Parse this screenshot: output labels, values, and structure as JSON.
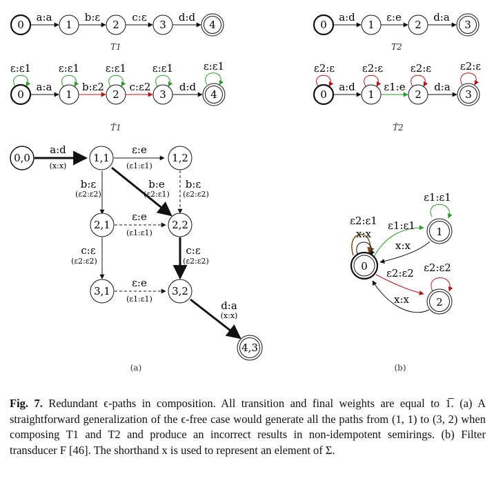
{
  "t1": {
    "states": [
      "0",
      "1",
      "2",
      "3",
      "4"
    ],
    "arcs": [
      "a:a",
      "b:ε",
      "c:ε",
      "d:d"
    ],
    "name": "T1"
  },
  "t2": {
    "states": [
      "0",
      "1",
      "2",
      "3"
    ],
    "arcs": [
      "a:d",
      "ε:e",
      "d:a"
    ],
    "name": "T2"
  },
  "t1_tilde": {
    "loops": [
      "ε:ε1",
      "ε:ε1",
      "ε:ε1",
      "ε:ε1",
      "ε:ε1"
    ],
    "arcs": [
      "a:a",
      "b:ε2",
      "c:ε2",
      "d:d"
    ],
    "name": "T̃1"
  },
  "t2_tilde": {
    "loops": [
      "ε2:ε",
      "ε2:ε",
      "ε2:ε",
      "ε2:ε"
    ],
    "arcs": [
      "a:d",
      "ε1:e",
      "d:a"
    ],
    "name": "T̃2"
  },
  "composition": {
    "states": [
      "0,0",
      "1,1",
      "1,2",
      "2,1",
      "2,2",
      "3,1",
      "3,2",
      "4,3"
    ],
    "arcs": [
      {
        "top": "a:d",
        "bottom": "(x:x)"
      },
      {
        "top": "ε:e",
        "bottom": "(ε1:ε1)"
      },
      {
        "top": "b:ε",
        "bottom": "(ε2:ε2)"
      },
      {
        "top": "b:e",
        "bottom": "(ε2:ε1)"
      },
      {
        "top": "b:ε",
        "bottom": "(ε2:ε2)"
      },
      {
        "top": "ε:e",
        "bottom": "(ε1:ε1)"
      },
      {
        "top": "c:ε",
        "bottom": "(ε2:ε2)"
      },
      {
        "top": "c:ε",
        "bottom": "(ε2:ε2)"
      },
      {
        "top": "ε:e",
        "bottom": "(ε1:ε1)"
      },
      {
        "top": "d:a",
        "bottom": "(x:x)"
      }
    ],
    "sublabel": "(a)"
  },
  "filter": {
    "states": [
      "0",
      "1",
      "2"
    ],
    "labels": [
      "ε2:ε1",
      "x:x",
      "ε1:ε1",
      "x:x",
      "ε1:ε1",
      "ε2:ε2",
      "x:x",
      "ε2:ε2"
    ],
    "sublabel": "(b)"
  },
  "caption": {
    "label": "Fig. 7.",
    "text": "Redundant ϵ-paths in composition. All transition and final weights are equal to 1̅. (a) A straightforward generalization of the ϵ-free case would generate all the paths from (1, 1) to (3, 2) when composing T1 and T2 and produce an incorrect results in non-idempotent semirings. (b) Filter transducer F [46]. The shorthand x is used to represent an element of Σ."
  },
  "colors": {
    "green": "#2e9a2e",
    "red": "#b01818",
    "brown": "#7a4a10"
  }
}
